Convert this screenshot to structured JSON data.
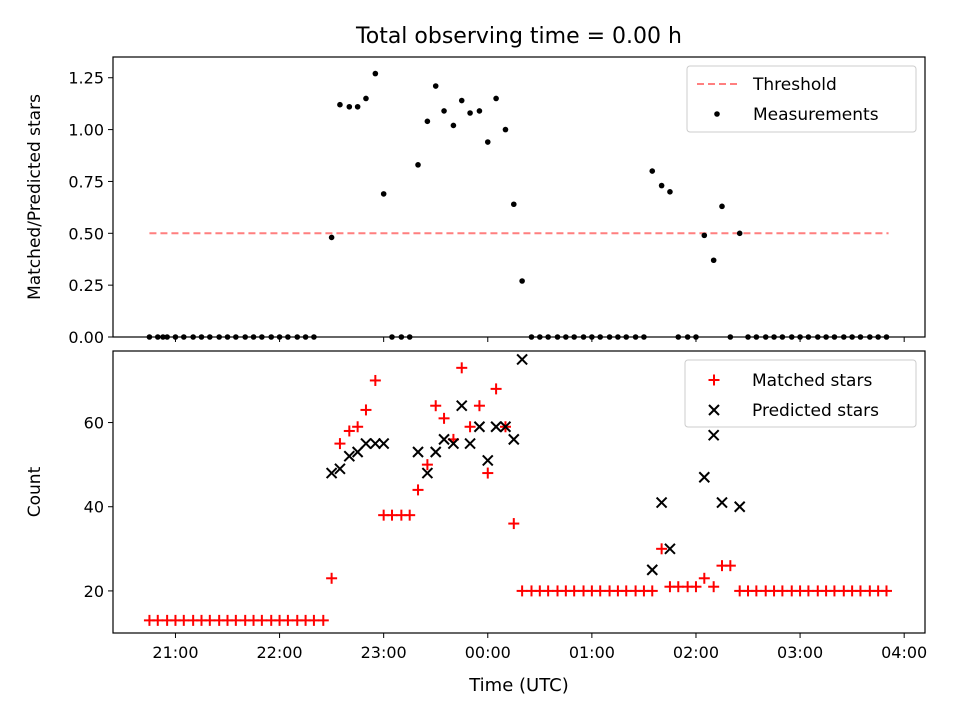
{
  "figure": {
    "title": "Total observing time = 0.00 h",
    "xlabel": "Time (UTC)",
    "x_tick_labels": [
      "21:00",
      "22:00",
      "23:00",
      "00:00",
      "01:00",
      "02:00",
      "03:00",
      "04:00"
    ]
  },
  "colors": {
    "threshold": "#ff7f7f",
    "measurements": "#000000",
    "matched": "#ff0000",
    "predicted": "#000000"
  },
  "chart_data": [
    {
      "type": "scatter",
      "ylabel": "Matched/Predicted stars",
      "x_unit": "hours relative to 00:00 UTC",
      "xlim": [
        -3.6,
        4.2
      ],
      "ylim": [
        0,
        1.35
      ],
      "y_tick_labels": [
        "0.00",
        "0.25",
        "0.50",
        "0.75",
        "1.00",
        "1.25"
      ],
      "legend": "top-right",
      "threshold": {
        "name": "Threshold",
        "value": 0.5,
        "x": [
          -3.25,
          3.85
        ]
      },
      "series": [
        {
          "name": "Measurements",
          "points": [
            [
              -3.25,
              0
            ],
            [
              -3.17,
              0
            ],
            [
              -3.12,
              0
            ],
            [
              -3.08,
              0
            ],
            [
              -3.0,
              0
            ],
            [
              -2.92,
              0
            ],
            [
              -2.83,
              0
            ],
            [
              -2.75,
              0
            ],
            [
              -2.67,
              0
            ],
            [
              -2.58,
              0
            ],
            [
              -2.5,
              0
            ],
            [
              -2.42,
              0
            ],
            [
              -2.33,
              0
            ],
            [
              -2.25,
              0
            ],
            [
              -2.17,
              0
            ],
            [
              -2.08,
              0
            ],
            [
              -2.0,
              0
            ],
            [
              -1.92,
              0
            ],
            [
              -1.83,
              0
            ],
            [
              -1.75,
              0
            ],
            [
              -1.67,
              0
            ],
            [
              -1.5,
              0.48
            ],
            [
              -1.42,
              1.12
            ],
            [
              -1.33,
              1.11
            ],
            [
              -1.25,
              1.11
            ],
            [
              -1.17,
              1.15
            ],
            [
              -1.08,
              1.27
            ],
            [
              -1.0,
              0.69
            ],
            [
              -0.92,
              0
            ],
            [
              -0.83,
              0
            ],
            [
              -0.75,
              0
            ],
            [
              -0.67,
              0.83
            ],
            [
              -0.58,
              1.04
            ],
            [
              -0.5,
              1.21
            ],
            [
              -0.42,
              1.09
            ],
            [
              -0.33,
              1.02
            ],
            [
              -0.25,
              1.14
            ],
            [
              -0.17,
              1.08
            ],
            [
              -0.08,
              1.09
            ],
            [
              0.0,
              0.94
            ],
            [
              0.08,
              1.15
            ],
            [
              0.17,
              1.0
            ],
            [
              0.25,
              0.64
            ],
            [
              0.33,
              0.27
            ],
            [
              0.42,
              0
            ],
            [
              0.5,
              0
            ],
            [
              0.58,
              0
            ],
            [
              0.67,
              0
            ],
            [
              0.75,
              0
            ],
            [
              0.83,
              0
            ],
            [
              0.92,
              0
            ],
            [
              1.0,
              0
            ],
            [
              1.08,
              0
            ],
            [
              1.17,
              0
            ],
            [
              1.25,
              0
            ],
            [
              1.33,
              0
            ],
            [
              1.42,
              0
            ],
            [
              1.5,
              0
            ],
            [
              1.58,
              0.8
            ],
            [
              1.67,
              0.73
            ],
            [
              1.75,
              0.7
            ],
            [
              1.83,
              0
            ],
            [
              1.92,
              0
            ],
            [
              2.0,
              0
            ],
            [
              2.08,
              0.49
            ],
            [
              2.17,
              0.37
            ],
            [
              2.25,
              0.63
            ],
            [
              2.33,
              0
            ],
            [
              2.42,
              0.5
            ],
            [
              2.5,
              0
            ],
            [
              2.58,
              0
            ],
            [
              2.67,
              0
            ],
            [
              2.75,
              0
            ],
            [
              2.83,
              0
            ],
            [
              2.92,
              0
            ],
            [
              3.0,
              0
            ],
            [
              3.08,
              0
            ],
            [
              3.17,
              0
            ],
            [
              3.25,
              0
            ],
            [
              3.33,
              0
            ],
            [
              3.42,
              0
            ],
            [
              3.5,
              0
            ],
            [
              3.58,
              0
            ],
            [
              3.67,
              0
            ],
            [
              3.75,
              0
            ],
            [
              3.83,
              0
            ]
          ]
        }
      ]
    },
    {
      "type": "scatter",
      "ylabel": "Count",
      "x_unit": "hours relative to 00:00 UTC",
      "xlim": [
        -3.6,
        4.2
      ],
      "ylim": [
        10,
        77
      ],
      "y_tick_labels": [
        "20",
        "40",
        "60"
      ],
      "legend": "top-right",
      "series": [
        {
          "name": "Matched stars",
          "marker": "plus",
          "points": [
            [
              -3.25,
              13
            ],
            [
              -3.17,
              13
            ],
            [
              -3.08,
              13
            ],
            [
              -3.0,
              13
            ],
            [
              -2.92,
              13
            ],
            [
              -2.83,
              13
            ],
            [
              -2.75,
              13
            ],
            [
              -2.67,
              13
            ],
            [
              -2.58,
              13
            ],
            [
              -2.5,
              13
            ],
            [
              -2.42,
              13
            ],
            [
              -2.33,
              13
            ],
            [
              -2.25,
              13
            ],
            [
              -2.17,
              13
            ],
            [
              -2.08,
              13
            ],
            [
              -2.0,
              13
            ],
            [
              -1.92,
              13
            ],
            [
              -1.83,
              13
            ],
            [
              -1.75,
              13
            ],
            [
              -1.67,
              13
            ],
            [
              -1.58,
              13
            ],
            [
              -1.5,
              23
            ],
            [
              -1.42,
              55
            ],
            [
              -1.33,
              58
            ],
            [
              -1.25,
              59
            ],
            [
              -1.17,
              63
            ],
            [
              -1.08,
              70
            ],
            [
              -1.0,
              38
            ],
            [
              -0.92,
              38
            ],
            [
              -0.83,
              38
            ],
            [
              -0.75,
              38
            ],
            [
              -0.67,
              44
            ],
            [
              -0.58,
              50
            ],
            [
              -0.5,
              64
            ],
            [
              -0.42,
              61
            ],
            [
              -0.33,
              56
            ],
            [
              -0.25,
              73
            ],
            [
              -0.17,
              59
            ],
            [
              -0.08,
              64
            ],
            [
              0.0,
              48
            ],
            [
              0.08,
              68
            ],
            [
              0.17,
              59
            ],
            [
              0.25,
              36
            ],
            [
              0.33,
              20
            ],
            [
              0.42,
              20
            ],
            [
              0.5,
              20
            ],
            [
              0.58,
              20
            ],
            [
              0.67,
              20
            ],
            [
              0.75,
              20
            ],
            [
              0.83,
              20
            ],
            [
              0.92,
              20
            ],
            [
              1.0,
              20
            ],
            [
              1.08,
              20
            ],
            [
              1.17,
              20
            ],
            [
              1.25,
              20
            ],
            [
              1.33,
              20
            ],
            [
              1.42,
              20
            ],
            [
              1.5,
              20
            ],
            [
              1.58,
              20
            ],
            [
              1.67,
              30
            ],
            [
              1.75,
              21
            ],
            [
              1.83,
              21
            ],
            [
              1.92,
              21
            ],
            [
              2.0,
              21
            ],
            [
              2.08,
              23
            ],
            [
              2.17,
              21
            ],
            [
              2.25,
              26
            ],
            [
              2.33,
              26
            ],
            [
              2.42,
              20
            ],
            [
              2.5,
              20
            ],
            [
              2.58,
              20
            ],
            [
              2.67,
              20
            ],
            [
              2.75,
              20
            ],
            [
              2.83,
              20
            ],
            [
              2.92,
              20
            ],
            [
              3.0,
              20
            ],
            [
              3.08,
              20
            ],
            [
              3.17,
              20
            ],
            [
              3.25,
              20
            ],
            [
              3.33,
              20
            ],
            [
              3.42,
              20
            ],
            [
              3.5,
              20
            ],
            [
              3.58,
              20
            ],
            [
              3.67,
              20
            ],
            [
              3.75,
              20
            ],
            [
              3.83,
              20
            ]
          ]
        },
        {
          "name": "Predicted stars",
          "marker": "x",
          "points": [
            [
              -1.5,
              48
            ],
            [
              -1.42,
              49
            ],
            [
              -1.33,
              52
            ],
            [
              -1.25,
              53
            ],
            [
              -1.17,
              55
            ],
            [
              -1.08,
              55
            ],
            [
              -1.0,
              55
            ],
            [
              -0.67,
              53
            ],
            [
              -0.58,
              48
            ],
            [
              -0.5,
              53
            ],
            [
              -0.42,
              56
            ],
            [
              -0.33,
              55
            ],
            [
              -0.25,
              64
            ],
            [
              -0.17,
              55
            ],
            [
              -0.08,
              59
            ],
            [
              0.0,
              51
            ],
            [
              0.08,
              59
            ],
            [
              0.17,
              59
            ],
            [
              0.25,
              56
            ],
            [
              0.33,
              75
            ],
            [
              1.58,
              25
            ],
            [
              1.67,
              41
            ],
            [
              1.75,
              30
            ],
            [
              2.08,
              47
            ],
            [
              2.17,
              57
            ],
            [
              2.25,
              41
            ],
            [
              2.42,
              40
            ]
          ]
        }
      ]
    }
  ]
}
